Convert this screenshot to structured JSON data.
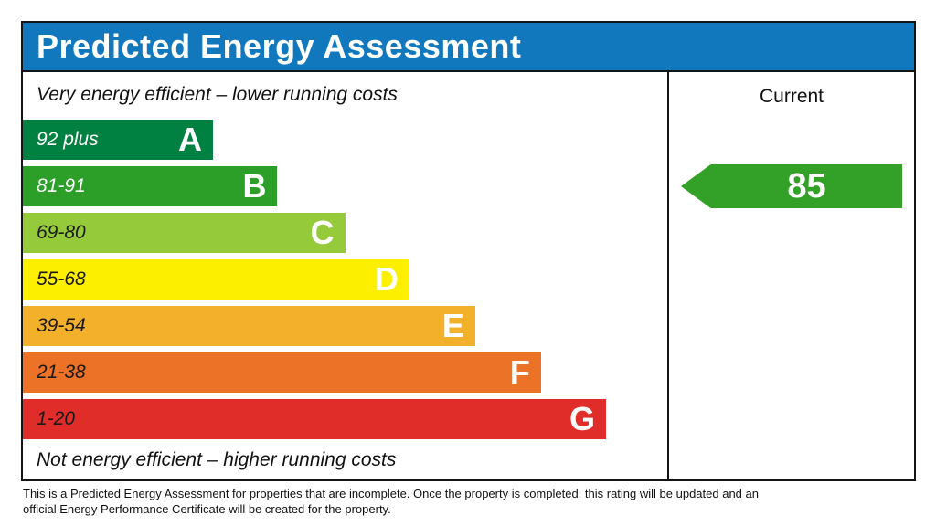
{
  "title_bar": {
    "label": "Predicted Energy Assessment",
    "bg_color": "#1278bd",
    "text_color": "#ffffff"
  },
  "chart_data": {
    "type": "bar",
    "title": "Predicted Energy Assessment",
    "top_caption": "Very energy efficient – lower running costs",
    "bottom_caption": "Not energy efficient – higher running costs",
    "current_column_header": "Current",
    "legend_position": "none",
    "grid": false,
    "bands": [
      {
        "letter": "A",
        "range": "92 plus",
        "color": "#008142",
        "label_color": "#ffffff",
        "width_pct": 29.5
      },
      {
        "letter": "B",
        "range": "81-91",
        "color": "#2c9f29",
        "label_color": "#ffffff",
        "width_pct": 39.5
      },
      {
        "letter": "C",
        "range": "69-80",
        "color": "#95ca3b",
        "label_color": "#1a1a1a",
        "width_pct": 50.0
      },
      {
        "letter": "D",
        "range": "55-68",
        "color": "#fcf000",
        "label_color": "#1a1a1a",
        "width_pct": 60.0
      },
      {
        "letter": "E",
        "range": "39-54",
        "color": "#f3b02a",
        "label_color": "#1a1a1a",
        "width_pct": 70.2
      },
      {
        "letter": "F",
        "range": "21-38",
        "color": "#eb7226",
        "label_color": "#1a1a1a",
        "width_pct": 80.4
      },
      {
        "letter": "G",
        "range": "1-20",
        "color": "#e12d29",
        "label_color": "#1a1a1a",
        "width_pct": 90.5
      }
    ],
    "current_rating": {
      "value": 85,
      "band": "B",
      "row_index": 1,
      "arrow_color": "#33a127"
    }
  },
  "footer": {
    "line1": "This is a Predicted Energy Assessment for properties that are incomplete. Once the property is completed, this rating will be updated and an",
    "line2": "official Energy Performance Certificate will be created for the property."
  }
}
